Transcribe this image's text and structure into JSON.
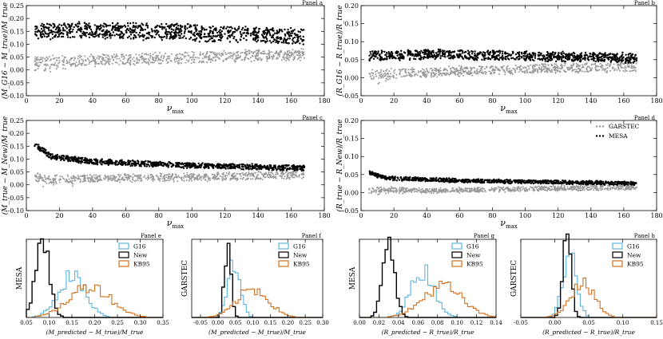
{
  "colors": {
    "g16": "#5ab4e0",
    "new": "#000000",
    "kb95": "#d4701c",
    "garstec": "#999999",
    "mesa": "#000000"
  },
  "scatter_legend": [
    "GARSTEC",
    "MESA"
  ],
  "hist_legend": [
    "G16",
    "New",
    "KB95"
  ],
  "chart_data": [
    {
      "type": "scatter",
      "panel": "Panel a",
      "xlabel": "ν_max",
      "ylabel": "(M_G16 − M_true)/M_true",
      "xlim": [
        0,
        180
      ],
      "ylim": [
        -0.1,
        0.25
      ],
      "xticks": [
        0,
        20,
        40,
        60,
        80,
        100,
        120,
        140,
        160,
        180
      ],
      "yticks": [
        -0.1,
        -0.05,
        0.0,
        0.05,
        0.1,
        0.15,
        0.2,
        0.25
      ],
      "series": [
        {
          "name": "GARSTEC",
          "trend": [
            [
              5,
              0.035
            ],
            [
              30,
              0.035
            ],
            [
              80,
              0.045
            ],
            [
              130,
              0.055
            ],
            [
              168,
              0.06
            ]
          ],
          "spread": 0.025
        },
        {
          "name": "MESA",
          "trend": [
            [
              5,
              0.15
            ],
            [
              40,
              0.155
            ],
            [
              100,
              0.145
            ],
            [
              168,
              0.13
            ]
          ],
          "spread": 0.035
        }
      ]
    },
    {
      "type": "scatter",
      "panel": "Panel b",
      "xlabel": "ν_max",
      "ylabel": "(R_G16 − R_true)/R_true",
      "xlim": [
        0,
        180
      ],
      "ylim": [
        -0.05,
        0.2
      ],
      "xticks": [
        0,
        20,
        40,
        60,
        80,
        100,
        120,
        140,
        160,
        180
      ],
      "yticks": [
        -0.05,
        0.0,
        0.05,
        0.1,
        0.15,
        0.2
      ],
      "series": [
        {
          "name": "GARSTEC",
          "trend": [
            [
              5,
              0.01
            ],
            [
              40,
              0.015
            ],
            [
              100,
              0.025
            ],
            [
              168,
              0.03
            ]
          ],
          "spread": 0.015
        },
        {
          "name": "MESA",
          "trend": [
            [
              5,
              0.06
            ],
            [
              40,
              0.065
            ],
            [
              100,
              0.06
            ],
            [
              168,
              0.055
            ]
          ],
          "spread": 0.015
        }
      ]
    },
    {
      "type": "scatter",
      "panel": "Panel c",
      "xlabel": "ν_max",
      "ylabel": "(M_true − M_New)/M_true",
      "xlim": [
        0,
        180
      ],
      "ylim": [
        -0.1,
        0.25
      ],
      "xticks": [
        0,
        20,
        40,
        60,
        80,
        100,
        120,
        140,
        160,
        180
      ],
      "yticks": [
        -0.1,
        -0.05,
        0.0,
        0.05,
        0.1,
        0.15,
        0.2,
        0.25
      ],
      "series": [
        {
          "name": "GARSTEC",
          "trend": [
            [
              5,
              0.03
            ],
            [
              15,
              0.02
            ],
            [
              40,
              0.025
            ],
            [
              100,
              0.03
            ],
            [
              168,
              0.04
            ]
          ],
          "spread": 0.018
        },
        {
          "name": "MESA",
          "trend": [
            [
              5,
              0.16
            ],
            [
              15,
              0.11
            ],
            [
              40,
              0.09
            ],
            [
              100,
              0.075
            ],
            [
              168,
              0.065
            ]
          ],
          "spread": 0.012
        }
      ]
    },
    {
      "type": "scatter",
      "panel": "Panel d",
      "xlabel": "ν_max",
      "ylabel": "(R_true − R_New)/R_true",
      "xlim": [
        0,
        180
      ],
      "ylim": [
        -0.05,
        0.2
      ],
      "xticks": [
        0,
        20,
        40,
        60,
        80,
        100,
        120,
        140,
        160,
        180
      ],
      "yticks": [
        -0.05,
        0.0,
        0.05,
        0.1,
        0.15,
        0.2
      ],
      "series": [
        {
          "name": "GARSTEC",
          "trend": [
            [
              5,
              0.01
            ],
            [
              40,
              0.005
            ],
            [
              100,
              0.01
            ],
            [
              168,
              0.015
            ]
          ],
          "spread": 0.008
        },
        {
          "name": "MESA",
          "trend": [
            [
              5,
              0.055
            ],
            [
              15,
              0.04
            ],
            [
              60,
              0.033
            ],
            [
              168,
              0.025
            ]
          ],
          "spread": 0.006
        }
      ]
    },
    {
      "type": "histogram",
      "panel": "Panel e",
      "side": "MESA",
      "xlabel": "(M_predicted − M_true)/M_true",
      "xlim": [
        0.05,
        0.35
      ],
      "xticks": [
        0.05,
        0.1,
        0.15,
        0.2,
        0.25,
        0.3,
        0.35
      ],
      "series": [
        {
          "name": "G16",
          "mu": 0.15,
          "sigma": 0.03,
          "peak": 0.55
        },
        {
          "name": "New",
          "mu": 0.085,
          "sigma": 0.015,
          "peak": 1.0
        },
        {
          "name": "KB95",
          "mu": 0.19,
          "sigma": 0.045,
          "peak": 0.42
        }
      ]
    },
    {
      "type": "histogram",
      "panel": "Panel f",
      "side": "GARSTEC",
      "xlabel": "(M_predicted − M_true)/M_true",
      "xlim": [
        -0.075,
        0.3
      ],
      "xticks": [
        -0.05,
        0.0,
        0.05,
        0.1,
        0.15,
        0.2,
        0.25,
        0.3
      ],
      "series": [
        {
          "name": "G16",
          "mu": 0.045,
          "sigma": 0.018,
          "peak": 0.75
        },
        {
          "name": "New",
          "mu": 0.028,
          "sigma": 0.009,
          "peak": 1.0
        },
        {
          "name": "KB95",
          "mu": 0.1,
          "sigma": 0.045,
          "peak": 0.38
        }
      ]
    },
    {
      "type": "histogram",
      "panel": "Panel g",
      "side": "MESA",
      "xlabel": "(R_predicted − R_true)/R_true",
      "xlim": [
        0.0,
        0.14
      ],
      "xticks": [
        0.0,
        0.02,
        0.04,
        0.06,
        0.08,
        0.1,
        0.12,
        0.14
      ],
      "series": [
        {
          "name": "G16",
          "mu": 0.065,
          "sigma": 0.012,
          "peak": 0.62
        },
        {
          "name": "New",
          "mu": 0.03,
          "sigma": 0.006,
          "peak": 1.0
        },
        {
          "name": "KB95",
          "mu": 0.085,
          "sigma": 0.02,
          "peak": 0.42
        }
      ]
    },
    {
      "type": "histogram",
      "panel": "Panel h",
      "side": "GARSTEC",
      "xlabel": "(R_predicted − R_true)/R_true",
      "xlim": [
        -0.05,
        0.15
      ],
      "xticks": [
        -0.05,
        0.0,
        0.05,
        0.1,
        0.15
      ],
      "series": [
        {
          "name": "G16",
          "mu": 0.022,
          "sigma": 0.01,
          "peak": 0.82
        },
        {
          "name": "New",
          "mu": 0.018,
          "sigma": 0.006,
          "peak": 1.0
        },
        {
          "name": "KB95",
          "mu": 0.04,
          "sigma": 0.018,
          "peak": 0.45
        }
      ]
    }
  ]
}
